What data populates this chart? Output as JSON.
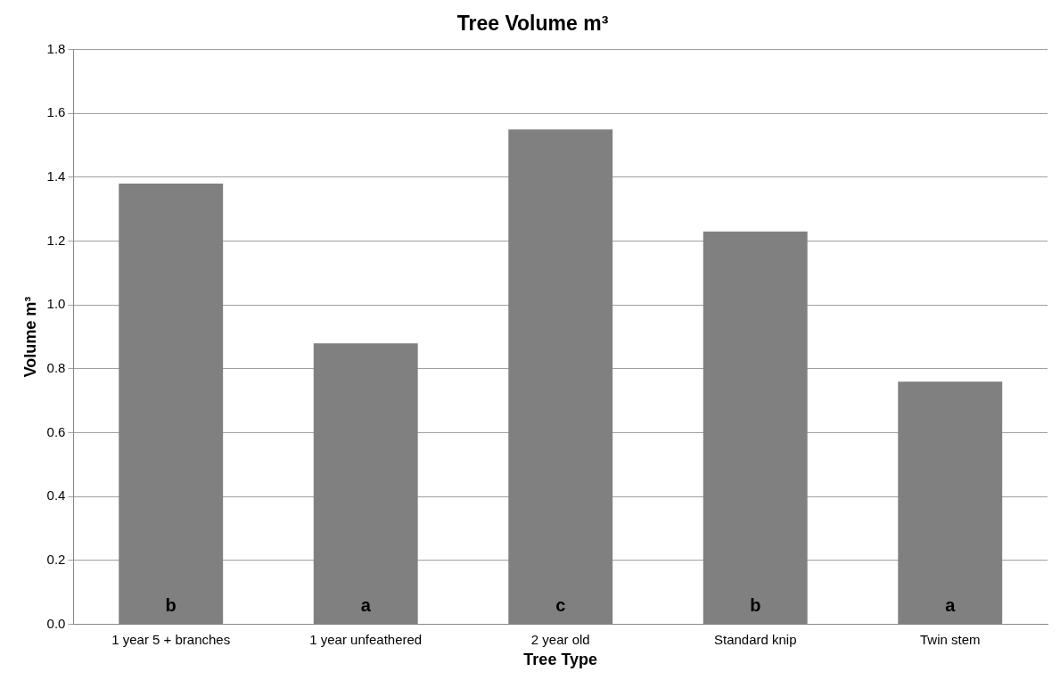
{
  "chart_data": {
    "type": "bar",
    "title": "Tree Volume m³",
    "xlabel": "Tree Type",
    "ylabel": "Volume m³",
    "categories": [
      "1 year 5 + branches",
      "1 year unfeathered",
      "2 year old",
      "Standard knip",
      "Twin stem"
    ],
    "values": [
      1.38,
      0.88,
      1.55,
      1.23,
      0.76
    ],
    "color": "#808080",
    "ylim": [
      0,
      1.8
    ],
    "yticks": [
      {
        "value": 0,
        "label": "0.0"
      },
      {
        "value": 0.2,
        "label": "0.2"
      },
      {
        "value": 0.4,
        "label": "0.4"
      },
      {
        "value": 0.6,
        "label": "0.6"
      },
      {
        "value": 0.8,
        "label": "0.8"
      },
      {
        "value": 1,
        "label": "1.0"
      },
      {
        "value": 1.2,
        "label": "1.2"
      },
      {
        "value": 1.4,
        "label": "1.4"
      },
      {
        "value": 1.6,
        "label": "1.6"
      },
      {
        "value": 1.8,
        "label": "1.8"
      }
    ],
    "grid": "y",
    "legend": false,
    "value_labels": [
      "b",
      "a",
      "c",
      "b",
      "a"
    ]
  }
}
